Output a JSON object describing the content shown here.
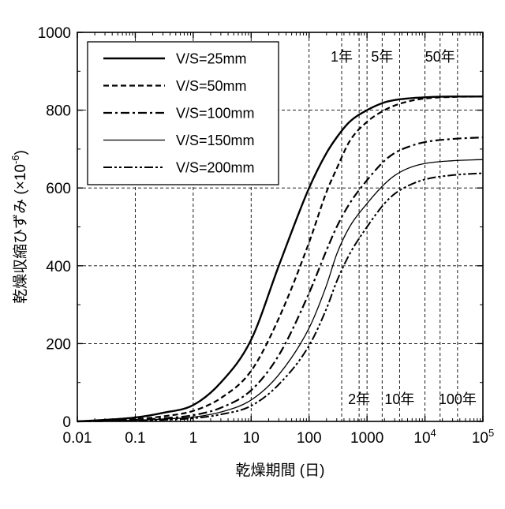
{
  "chart_data": {
    "type": "line",
    "title": "",
    "xlabel": "乾燥期間 (日)",
    "ylabel": "乾燥収縮ひずみ (×10",
    "ylabel_exponent": "-6",
    "ylabel_close": ")",
    "x_scale": "log",
    "xlim": [
      0.01,
      100000
    ],
    "ylim": [
      0,
      1000
    ],
    "grid": "dashed",
    "legend_position": "top-left",
    "x_ticks": [
      {
        "value": 0.01,
        "base": "0.01",
        "exp": ""
      },
      {
        "value": 0.1,
        "base": "0.1",
        "exp": ""
      },
      {
        "value": 1,
        "base": "1",
        "exp": ""
      },
      {
        "value": 10,
        "base": "10",
        "exp": ""
      },
      {
        "value": 100,
        "base": "100",
        "exp": ""
      },
      {
        "value": 1000,
        "base": "1000",
        "exp": ""
      },
      {
        "value": 10000,
        "base": "10",
        "exp": "4"
      },
      {
        "value": 100000,
        "base": "10",
        "exp": "5"
      }
    ],
    "y_ticks": [
      {
        "value": 0,
        "label": "0"
      },
      {
        "value": 200,
        "label": "200"
      },
      {
        "value": 400,
        "label": "400"
      },
      {
        "value": 600,
        "label": "600"
      },
      {
        "value": 800,
        "label": "800"
      },
      {
        "value": 1000,
        "label": "1000"
      }
    ],
    "x": [
      0.01,
      0.03,
      0.1,
      0.3,
      1,
      3,
      10,
      30,
      100,
      200,
      300,
      500,
      1000,
      2000,
      3000,
      5000,
      10000,
      30000,
      100000
    ],
    "series": [
      {
        "name": "V/S=25mm",
        "style": "solid",
        "width": 2.4,
        "values": [
          0,
          4,
          10,
          22,
          42,
          100,
          210,
          400,
          600,
          690,
          730,
          770,
          800,
          820,
          826,
          830,
          833,
          835,
          835
        ]
      },
      {
        "name": "V/S=50mm",
        "style": "dashed",
        "width": 2.2,
        "values": [
          0,
          2,
          6,
          13,
          27,
          60,
          130,
          265,
          460,
          590,
          650,
          720,
          770,
          800,
          812,
          822,
          830,
          834,
          835
        ]
      },
      {
        "name": "V/S=100mm",
        "style": "dashdot",
        "width": 2.2,
        "values": [
          0,
          1,
          4,
          8,
          16,
          35,
          80,
          170,
          330,
          440,
          500,
          560,
          620,
          670,
          690,
          705,
          718,
          726,
          730
        ]
      },
      {
        "name": "V/S=150mm",
        "style": "solid",
        "width": 1.3,
        "values": [
          0,
          1,
          3,
          6,
          11,
          24,
          55,
          120,
          240,
          350,
          430,
          500,
          560,
          610,
          632,
          650,
          663,
          670,
          673
        ]
      },
      {
        "name": "V/S=200mm",
        "style": "dashdotdot",
        "width": 2.0,
        "values": [
          0,
          1,
          2,
          4,
          8,
          18,
          40,
          95,
          195,
          290,
          360,
          430,
          500,
          560,
          585,
          605,
          622,
          633,
          638
        ]
      }
    ],
    "reference_lines": [
      {
        "label": "1年",
        "x": 365,
        "label_pos": "top"
      },
      {
        "label": "5年",
        "x": 1825,
        "label_pos": "top"
      },
      {
        "label": "50年",
        "x": 18250,
        "label_pos": "top"
      },
      {
        "label": "2年",
        "x": 730,
        "label_pos": "bottom"
      },
      {
        "label": "10年",
        "x": 3650,
        "label_pos": "bottom"
      },
      {
        "label": "100年",
        "x": 36500,
        "label_pos": "bottom"
      }
    ]
  }
}
